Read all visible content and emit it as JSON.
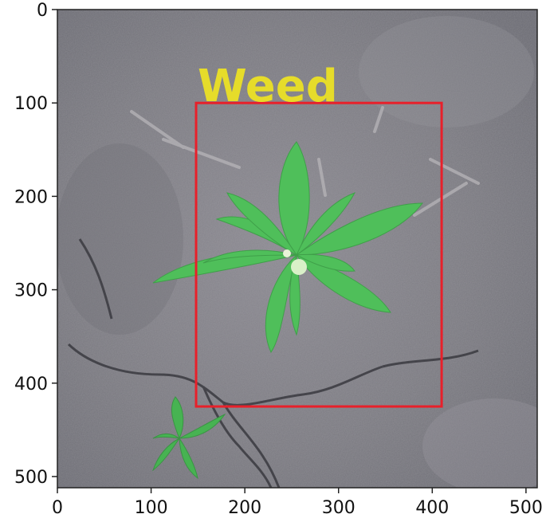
{
  "axes": {
    "x_ticks": [
      "0",
      "100",
      "200",
      "300",
      "400",
      "500"
    ],
    "y_ticks": [
      "0",
      "100",
      "200",
      "300",
      "400",
      "500"
    ],
    "x_range": [
      0,
      512
    ],
    "y_range": [
      0,
      512
    ],
    "y_inverted": true,
    "tick_values": [
      0,
      100,
      200,
      300,
      400,
      500
    ]
  },
  "detection": {
    "label": "Weed",
    "box_color": "#e8202a",
    "label_color": "#e6dc2a",
    "box": {
      "x1": 148,
      "y1": 100,
      "x2": 410,
      "y2": 425
    }
  },
  "image": {
    "subject": "weed seedling on cracked soil",
    "soil_color": "#7c7b82",
    "plant_color": "#4fbf5a"
  }
}
